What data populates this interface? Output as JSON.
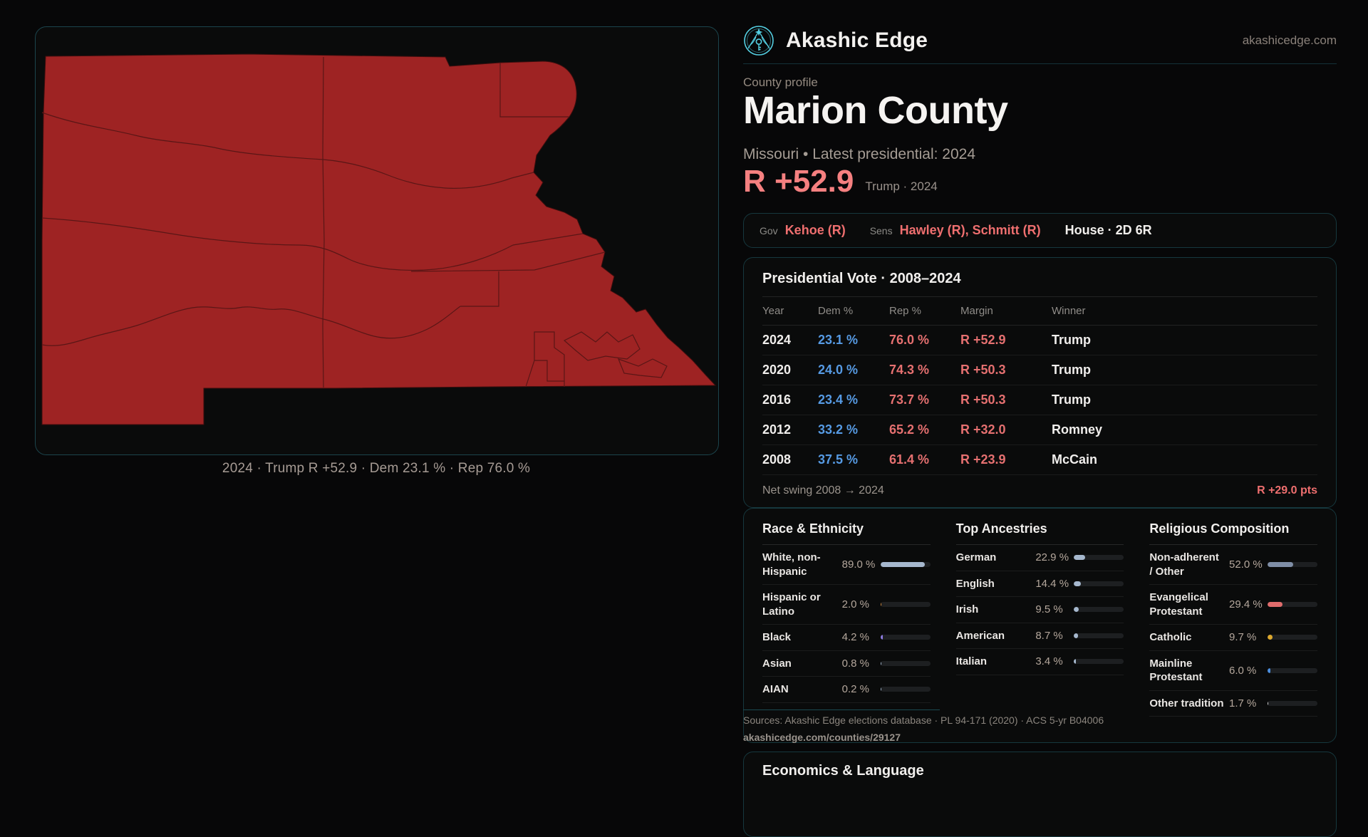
{
  "brand": {
    "name": "Akashic Edge",
    "domain": "akashicedge.com",
    "logo_icon": "key-star-emblem-icon",
    "logo_color": "#54cfe2"
  },
  "profile": {
    "eyebrow": "County profile",
    "name": "Marion County",
    "subtitle": "Missouri • Latest presidential: 2024",
    "margin": "R +52.9",
    "margin_note": "Trump · 2024"
  },
  "officials": {
    "gov_label": "Gov",
    "gov": "Kehoe (R)",
    "sens_label": "Sens",
    "sens": "Hawley (R), Schmitt (R)",
    "house": "House · 2D 6R"
  },
  "presidential": {
    "title": "Presidential Vote · 2008–2024",
    "columns": [
      "Year",
      "Dem %",
      "Rep %",
      "Margin",
      "Winner"
    ],
    "rows": [
      {
        "year": "2024",
        "dem": "23.1 %",
        "rep": "76.0 %",
        "margin": "R +52.9",
        "winner": "Trump"
      },
      {
        "year": "2020",
        "dem": "24.0 %",
        "rep": "74.3 %",
        "margin": "R +50.3",
        "winner": "Trump"
      },
      {
        "year": "2016",
        "dem": "23.4 %",
        "rep": "73.7 %",
        "margin": "R +50.3",
        "winner": "Trump"
      },
      {
        "year": "2012",
        "dem": "33.2 %",
        "rep": "65.2 %",
        "margin": "R +32.0",
        "winner": "Romney"
      },
      {
        "year": "2008",
        "dem": "37.5 %",
        "rep": "61.4 %",
        "margin": "R +23.9",
        "winner": "McCain"
      }
    ],
    "net_swing_label": "Net swing 2008 → 2024",
    "net_swing_value": "R +29.0 pts"
  },
  "map": {
    "caption": "2024 · Trump R +52.9 · Dem 23.1 % · Rep 76.0 %",
    "county_fill": "#9e2323",
    "county_stroke": "#3f0e0e",
    "boundary_color": "#5a1616"
  },
  "demographics": {
    "sections": [
      {
        "title": "Race & Ethnicity",
        "rows": [
          {
            "label": "White, non-Hispanic",
            "value": "89.0 %",
            "pct": 89,
            "color": "#a6b8ce"
          },
          {
            "label": "Hispanic or Latino",
            "value": "2.0 %",
            "pct": 2,
            "color": "#d28a3c"
          },
          {
            "label": "Black",
            "value": "4.2 %",
            "pct": 4.2,
            "color": "#8d7be0"
          },
          {
            "label": "Asian",
            "value": "0.8 %",
            "pct": 0.8,
            "color": "#a6b8ce"
          },
          {
            "label": "AIAN",
            "value": "0.2 %",
            "pct": 0.2,
            "color": "#a6b8ce"
          }
        ]
      },
      {
        "title": "Top Ancestries",
        "rows": [
          {
            "label": "German",
            "value": "22.9 %",
            "pct": 22.9,
            "color": "#a6b8ce"
          },
          {
            "label": "English",
            "value": "14.4 %",
            "pct": 14.4,
            "color": "#a6b8ce"
          },
          {
            "label": "Irish",
            "value": "9.5 %",
            "pct": 9.5,
            "color": "#a6b8ce"
          },
          {
            "label": "American",
            "value": "8.7 %",
            "pct": 8.7,
            "color": "#a6b8ce"
          },
          {
            "label": "Italian",
            "value": "3.4 %",
            "pct": 3.4,
            "color": "#a6b8ce"
          }
        ]
      },
      {
        "title": "Religious Composition",
        "rows": [
          {
            "label": "Non-adherent / Other",
            "value": "52.0 %",
            "pct": 52,
            "color": "#7f8ea6"
          },
          {
            "label": "Evangelical Protestant",
            "value": "29.4 %",
            "pct": 29.4,
            "color": "#e06c6c"
          },
          {
            "label": "Catholic",
            "value": "9.7 %",
            "pct": 9.7,
            "color": "#dda92e"
          },
          {
            "label": "Mainline Protestant",
            "value": "6.0 %",
            "pct": 6,
            "color": "#4b8ede"
          },
          {
            "label": "Other tradition",
            "value": "1.7 %",
            "pct": 1.7,
            "color": "#d9d9d9"
          }
        ]
      }
    ]
  },
  "sources": {
    "line1": "Sources: Akashic Edge elections database · PL 94-171 (2020) · ACS 5-yr B04006",
    "line2": "akashicedge.com/counties/29127"
  },
  "economics": {
    "title": "Economics & Language"
  }
}
